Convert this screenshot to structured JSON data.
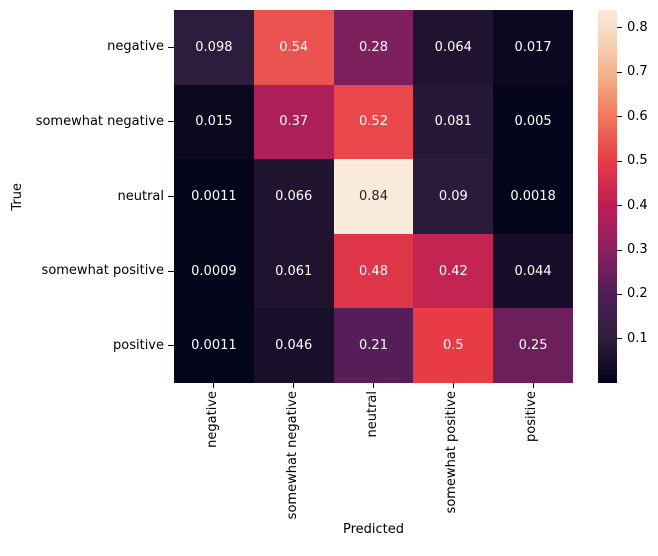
{
  "chart_data": {
    "type": "heatmap",
    "title": "",
    "xlabel": "Predicted",
    "ylabel": "True",
    "x_categories": [
      "negative",
      "somewhat negative",
      "neutral",
      "somewhat positive",
      "positive"
    ],
    "y_categories": [
      "negative",
      "somewhat negative",
      "neutral",
      "somewhat positive",
      "positive"
    ],
    "matrix": [
      [
        0.098,
        0.54,
        0.28,
        0.064,
        0.017
      ],
      [
        0.015,
        0.37,
        0.52,
        0.081,
        0.005
      ],
      [
        0.0011,
        0.066,
        0.84,
        0.09,
        0.0018
      ],
      [
        0.0009,
        0.061,
        0.48,
        0.42,
        0.044
      ],
      [
        0.0011,
        0.046,
        0.21,
        0.5,
        0.25
      ]
    ],
    "vmin": 0.0009,
    "vmax": 0.84,
    "annotations_on": true,
    "grid": false,
    "legend_position": "colorbar-right",
    "colorbar_ticks": [
      0.1,
      0.2,
      0.3,
      0.4,
      0.5,
      0.6,
      0.7,
      0.8
    ],
    "colormap_name": "rocket",
    "colormap_stops": [
      {
        "t": 0.0,
        "color": "#03051A"
      },
      {
        "t": 0.055,
        "color": "#190F2A"
      },
      {
        "t": 0.118,
        "color": "#2E1E3E"
      },
      {
        "t": 0.237,
        "color": "#4F1E57"
      },
      {
        "t": 0.356,
        "color": "#8A2060"
      },
      {
        "t": 0.475,
        "color": "#BB1E55"
      },
      {
        "t": 0.595,
        "color": "#E73B46"
      },
      {
        "t": 0.714,
        "color": "#F0785F"
      },
      {
        "t": 0.833,
        "color": "#F5B48E"
      },
      {
        "t": 0.952,
        "color": "#F8DFC8"
      },
      {
        "t": 1.0,
        "color": "#F9EADB"
      }
    ],
    "annotation_dark_text": "#262626",
    "annotation_light_text": "#ffffff",
    "tick_color": "#000000"
  }
}
